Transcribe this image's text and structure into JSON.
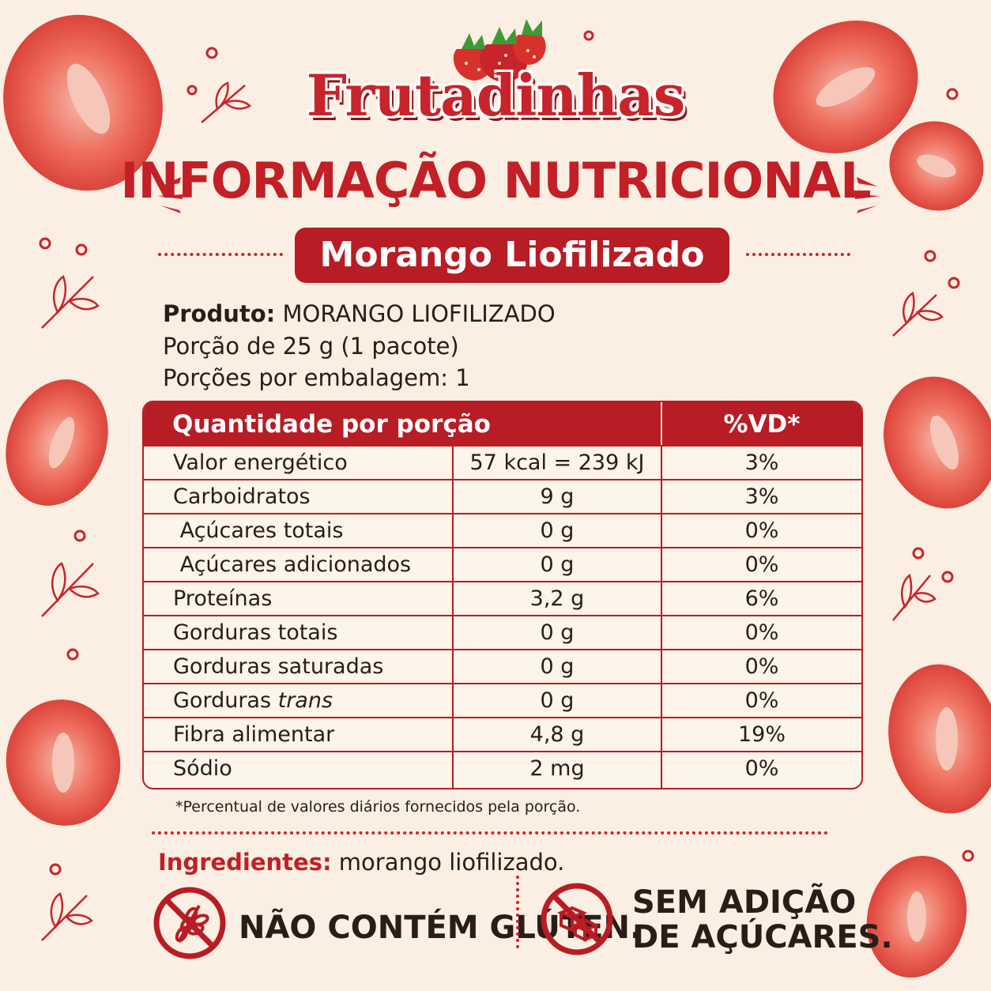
{
  "brand": "Frutadinhas",
  "title": "INFORMAÇÃO NUTRICIONAL",
  "subtitle": "Morango Liofilizado",
  "product": {
    "label": "Produto:",
    "value": "MORANGO LIOFILIZADO",
    "portion": "Porção de 25 g (1 pacote)",
    "servings": "Porções por embalagem: 1"
  },
  "table": {
    "header_qty": "Quantidade por porção",
    "header_vd": "%VD*",
    "rows": [
      {
        "name": "Valor energético",
        "amount": "57 kcal = 239 kJ",
        "vd": "3%"
      },
      {
        "name": "Carboidratos",
        "amount": "9 g",
        "vd": "3%"
      },
      {
        "name": " Açúcares totais",
        "amount": "0 g",
        "vd": "0%"
      },
      {
        "name": " Açúcares adicionados",
        "amount": "0 g",
        "vd": "0%"
      },
      {
        "name": "Proteínas",
        "amount": "3,2 g",
        "vd": "6%"
      },
      {
        "name": "Gorduras totais",
        "amount": "0 g",
        "vd": "0%"
      },
      {
        "name": "Gorduras saturadas",
        "amount": "0 g",
        "vd": "0%"
      },
      {
        "name": "Gorduras",
        "name_italic": "trans",
        "amount": "0 g",
        "vd": "0%"
      },
      {
        "name": "Fibra alimentar",
        "amount": "4,8 g",
        "vd": "19%"
      },
      {
        "name": "Sódio",
        "amount": "2 mg",
        "vd": "0%"
      }
    ]
  },
  "footnote": "*Percentual de valores diários fornecidos pela porção.",
  "ingredients": {
    "label": "Ingredientes:",
    "value": "morango liofilizado."
  },
  "badges": {
    "gluten": "NÃO CONTÉM GLÚTEN.",
    "sugar_line1": "SEM ADIÇÃO",
    "sugar_line2": "DE AÇÚCARES."
  },
  "colors": {
    "accent": "#b81c24",
    "background": "#fbeee2",
    "text": "#2a1c17"
  },
  "icons": [
    "strawberry-icon",
    "no-gluten-icon",
    "no-sugar-icon",
    "leaf-icon"
  ]
}
